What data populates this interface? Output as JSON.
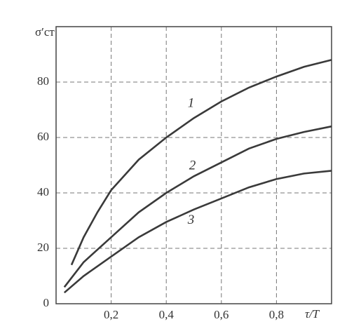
{
  "chart_data": {
    "type": "line",
    "xlabel": "τ/T",
    "ylabel": "σ′ст",
    "xlim": [
      0,
      1
    ],
    "ylim": [
      0,
      100
    ],
    "xticks": [
      {
        "value": 0.2,
        "label": "0,2"
      },
      {
        "value": 0.4,
        "label": "0,4"
      },
      {
        "value": 0.6,
        "label": "0,6"
      },
      {
        "value": 0.8,
        "label": "0,8"
      }
    ],
    "yticks": [
      0,
      20,
      40,
      60,
      80
    ],
    "grid": true,
    "series": [
      {
        "name": "1",
        "color": "#3a3a3a",
        "x": [
          0.056,
          0.1,
          0.15,
          0.2,
          0.3,
          0.4,
          0.5,
          0.6,
          0.7,
          0.8,
          0.9,
          1.0
        ],
        "values": [
          14,
          24,
          33,
          41,
          52,
          60,
          67,
          73,
          78,
          82,
          85.5,
          88
        ]
      },
      {
        "name": "2",
        "color": "#3a3a3a",
        "x": [
          0.03,
          0.1,
          0.2,
          0.3,
          0.4,
          0.5,
          0.6,
          0.7,
          0.8,
          0.9,
          1.0
        ],
        "values": [
          6,
          15,
          24,
          33,
          40,
          46,
          51,
          56,
          59.5,
          62,
          64
        ]
      },
      {
        "name": "3",
        "color": "#3a3a3a",
        "x": [
          0.03,
          0.1,
          0.2,
          0.3,
          0.4,
          0.5,
          0.6,
          0.7,
          0.8,
          0.9,
          1.0
        ],
        "values": [
          4,
          10,
          17,
          24,
          29.5,
          34,
          38,
          42,
          45,
          47,
          48
        ]
      }
    ]
  }
}
